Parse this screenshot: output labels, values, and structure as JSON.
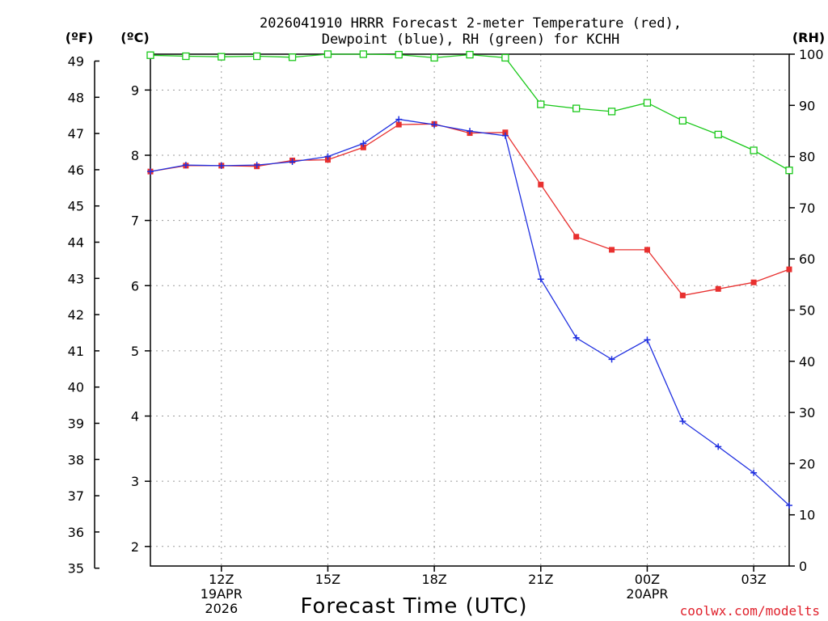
{
  "chart_data": {
    "type": "line",
    "title_line1": "2026041910 HRRR Forecast 2-meter Temperature (red),",
    "title_line2": "Dewpoint (blue), RH (green) for KCHH",
    "xlabel": "Forecast Time (UTC)",
    "credit": "coolwx.com/modelts",
    "units": {
      "fahrenheit": "(ºF)",
      "celsius": "(ºC)",
      "rh": "(RH)"
    },
    "x_hours": [
      10,
      11,
      12,
      13,
      14,
      15,
      16,
      17,
      18,
      19,
      20,
      21,
      22,
      23,
      24,
      25,
      26,
      27,
      28
    ],
    "xlim": [
      10,
      28
    ],
    "x_ticks": [
      {
        "hour": 12,
        "labels": [
          "12Z",
          "19APR",
          "2026"
        ]
      },
      {
        "hour": 15,
        "labels": [
          "15Z"
        ]
      },
      {
        "hour": 18,
        "labels": [
          "18Z"
        ]
      },
      {
        "hour": 21,
        "labels": [
          "21Z"
        ]
      },
      {
        "hour": 24,
        "labels": [
          "00Z",
          "20APR"
        ]
      },
      {
        "hour": 27,
        "labels": [
          "03Z"
        ]
      }
    ],
    "celsius_axis": {
      "ylim": [
        1.7,
        9.55
      ],
      "ticks": [
        2,
        3,
        4,
        5,
        6,
        7,
        8,
        9
      ]
    },
    "fahrenheit_axis": {
      "ticks": [
        35,
        36,
        37,
        38,
        39,
        40,
        41,
        42,
        43,
        44,
        45,
        46,
        47,
        48,
        49
      ]
    },
    "rh_axis": {
      "ylim": [
        0,
        100
      ],
      "ticks": [
        0,
        10,
        20,
        30,
        40,
        50,
        60,
        70,
        80,
        90,
        100
      ]
    },
    "series": [
      {
        "name": "Temperature",
        "axis": "celsius",
        "color": "#e8302f",
        "marker": "square-filled",
        "values": [
          7.75,
          7.84,
          7.84,
          7.83,
          7.92,
          7.93,
          8.12,
          8.47,
          8.48,
          8.34,
          8.35,
          7.55,
          6.75,
          6.55,
          6.55,
          5.85,
          5.95,
          6.05,
          6.25
        ]
      },
      {
        "name": "Dewpoint",
        "axis": "celsius",
        "color": "#2030e0",
        "marker": "plus",
        "values": [
          7.75,
          7.85,
          7.84,
          7.85,
          7.9,
          7.98,
          8.18,
          8.55,
          8.47,
          8.37,
          8.3,
          6.1,
          5.2,
          4.87,
          5.17,
          3.92,
          3.53,
          3.13,
          2.63
        ]
      },
      {
        "name": "RH",
        "axis": "rh",
        "color": "#19c819",
        "marker": "square-open",
        "values": [
          99.8,
          99.6,
          99.5,
          99.6,
          99.4,
          100,
          100,
          99.9,
          99.3,
          99.9,
          99.3,
          90.2,
          89.4,
          88.8,
          90.5,
          87,
          84.3,
          81.2,
          77.3
        ]
      }
    ]
  }
}
